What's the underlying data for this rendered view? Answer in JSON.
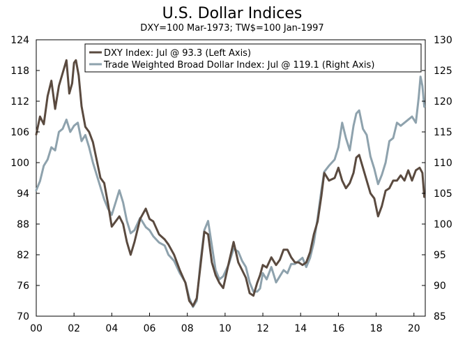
{
  "chart_data": {
    "type": "line",
    "title": "U.S. Dollar Indices",
    "subtitle": "DXY=100 Mar-1973; TW$=100 Jan-1997",
    "x_label": "",
    "x_ticks": [
      "00",
      "02",
      "04",
      "06",
      "08",
      "10",
      "12",
      "14",
      "16",
      "18",
      "20"
    ],
    "x_range": [
      2000,
      2020.6
    ],
    "left_axis": {
      "range": [
        70,
        124
      ],
      "ticks": [
        "124",
        "118",
        "112",
        "106",
        "100",
        "94",
        "88",
        "82",
        "76",
        "70"
      ],
      "tick_values": [
        124,
        118,
        112,
        106,
        100,
        94,
        88,
        82,
        76,
        70
      ]
    },
    "right_axis": {
      "range": [
        85,
        130
      ],
      "ticks": [
        "130",
        "125",
        "120",
        "115",
        "110",
        "105",
        "100",
        "95",
        "90",
        "85"
      ],
      "tick_values": [
        130,
        125,
        120,
        115,
        110,
        105,
        100,
        95,
        90,
        85
      ]
    },
    "legend_position": "top-right",
    "series": [
      {
        "name": "DXY Index: Jul @ 93.3 (Left Axis)",
        "axis": "left",
        "color": "#5a4a3f",
        "x": [
          2000.0,
          2000.2,
          2000.4,
          2000.6,
          2000.8,
          2001.0,
          2001.2,
          2001.4,
          2001.6,
          2001.75,
          2001.9,
          2002.0,
          2002.1,
          2002.25,
          2002.4,
          2002.6,
          2002.8,
          2003.0,
          2003.2,
          2003.4,
          2003.6,
          2003.8,
          2004.0,
          2004.2,
          2004.4,
          2004.6,
          2004.8,
          2005.0,
          2005.2,
          2005.5,
          2005.8,
          2006.0,
          2006.2,
          2006.5,
          2006.8,
          2007.0,
          2007.3,
          2007.6,
          2007.9,
          2008.1,
          2008.3,
          2008.5,
          2008.7,
          2008.9,
          2009.1,
          2009.3,
          2009.5,
          2009.7,
          2009.9,
          2010.2,
          2010.45,
          2010.7,
          2010.9,
          2011.1,
          2011.3,
          2011.5,
          2011.7,
          2011.85,
          2012.0,
          2012.2,
          2012.45,
          2012.7,
          2012.9,
          2013.1,
          2013.3,
          2013.5,
          2013.7,
          2013.9,
          2014.1,
          2014.3,
          2014.5,
          2014.7,
          2014.9,
          2015.1,
          2015.25,
          2015.5,
          2015.8,
          2016.0,
          2016.2,
          2016.4,
          2016.6,
          2016.8,
          2016.95,
          2017.1,
          2017.3,
          2017.5,
          2017.7,
          2017.9,
          2018.1,
          2018.3,
          2018.5,
          2018.7,
          2018.9,
          2019.1,
          2019.3,
          2019.5,
          2019.7,
          2019.9,
          2020.1,
          2020.3,
          2020.45,
          2020.55
        ],
        "values": [
          105.5,
          109.0,
          107.5,
          113.0,
          116.0,
          110.5,
          115.0,
          117.5,
          120.0,
          113.5,
          115.5,
          119.5,
          120.0,
          117.0,
          111.0,
          107.0,
          106.0,
          104.0,
          100.5,
          97.0,
          96.0,
          92.0,
          87.5,
          88.5,
          89.5,
          88.0,
          84.5,
          82.0,
          84.5,
          89.0,
          91.0,
          89.0,
          88.5,
          86.0,
          85.0,
          84.0,
          82.0,
          79.0,
          76.5,
          73.0,
          72.0,
          73.5,
          80.0,
          86.5,
          86.0,
          80.5,
          78.0,
          76.5,
          75.5,
          80.5,
          84.5,
          80.5,
          79.0,
          77.5,
          74.5,
          74.0,
          76.5,
          78.0,
          80.0,
          79.5,
          81.5,
          80.0,
          81.0,
          83.0,
          83.0,
          81.5,
          80.5,
          80.5,
          80.0,
          80.5,
          82.5,
          86.0,
          88.5,
          93.5,
          98.0,
          96.5,
          97.0,
          99.0,
          96.5,
          95.0,
          96.0,
          98.0,
          101.0,
          101.5,
          99.0,
          96.5,
          94.0,
          93.0,
          89.5,
          91.5,
          94.5,
          95.0,
          96.5,
          96.5,
          97.5,
          96.5,
          98.5,
          96.5,
          98.5,
          99.0,
          98.0,
          93.3
        ]
      },
      {
        "name": "Trade Weighted Broad Dollar Index: Jul @ 119.1 (Right Axis)",
        "axis": "right",
        "color": "#8ea2ad",
        "x": [
          2000.0,
          2000.2,
          2000.4,
          2000.6,
          2000.8,
          2001.0,
          2001.2,
          2001.4,
          2001.6,
          2001.8,
          2002.0,
          2002.2,
          2002.4,
          2002.6,
          2002.8,
          2003.0,
          2003.2,
          2003.4,
          2003.6,
          2003.8,
          2004.0,
          2004.2,
          2004.4,
          2004.6,
          2004.8,
          2005.0,
          2005.2,
          2005.5,
          2005.8,
          2006.0,
          2006.2,
          2006.5,
          2006.8,
          2007.0,
          2007.3,
          2007.6,
          2007.9,
          2008.1,
          2008.3,
          2008.5,
          2008.7,
          2008.9,
          2009.1,
          2009.3,
          2009.5,
          2009.7,
          2009.9,
          2010.2,
          2010.45,
          2010.7,
          2010.9,
          2011.1,
          2011.3,
          2011.5,
          2011.7,
          2011.85,
          2012.0,
          2012.2,
          2012.45,
          2012.7,
          2012.9,
          2013.1,
          2013.3,
          2013.5,
          2013.7,
          2013.9,
          2014.1,
          2014.3,
          2014.5,
          2014.7,
          2014.9,
          2015.1,
          2015.25,
          2015.5,
          2015.8,
          2016.0,
          2016.2,
          2016.4,
          2016.6,
          2016.8,
          2016.95,
          2017.1,
          2017.3,
          2017.5,
          2017.7,
          2017.9,
          2018.1,
          2018.3,
          2018.5,
          2018.7,
          2018.9,
          2019.1,
          2019.3,
          2019.5,
          2019.7,
          2019.9,
          2020.1,
          2020.25,
          2020.35,
          2020.45,
          2020.55
        ],
        "values": [
          105.5,
          107.0,
          109.5,
          110.5,
          112.5,
          112.0,
          115.0,
          115.5,
          117.0,
          115.0,
          116.0,
          116.5,
          113.5,
          114.5,
          112.5,
          110.0,
          108.0,
          106.0,
          104.0,
          102.5,
          101.5,
          103.5,
          105.5,
          103.5,
          100.5,
          98.5,
          99.0,
          101.0,
          99.5,
          99.0,
          98.0,
          97.0,
          96.5,
          95.0,
          94.0,
          92.0,
          90.5,
          88.0,
          86.5,
          87.5,
          94.0,
          99.0,
          100.5,
          96.5,
          92.5,
          91.0,
          91.5,
          93.5,
          96.0,
          95.5,
          94.0,
          93.0,
          90.5,
          89.0,
          89.0,
          89.5,
          92.0,
          91.0,
          93.0,
          90.5,
          91.5,
          92.5,
          92.0,
          93.5,
          93.5,
          94.0,
          94.5,
          93.0,
          94.5,
          97.0,
          101.0,
          105.5,
          108.5,
          109.5,
          110.5,
          112.5,
          116.5,
          114.0,
          112.0,
          116.0,
          118.0,
          118.5,
          115.5,
          114.5,
          111.0,
          109.0,
          106.5,
          108.0,
          110.0,
          113.5,
          114.0,
          116.5,
          116.0,
          116.5,
          117.0,
          117.5,
          116.5,
          120.5,
          124.0,
          122.5,
          119.1
        ]
      }
    ]
  }
}
